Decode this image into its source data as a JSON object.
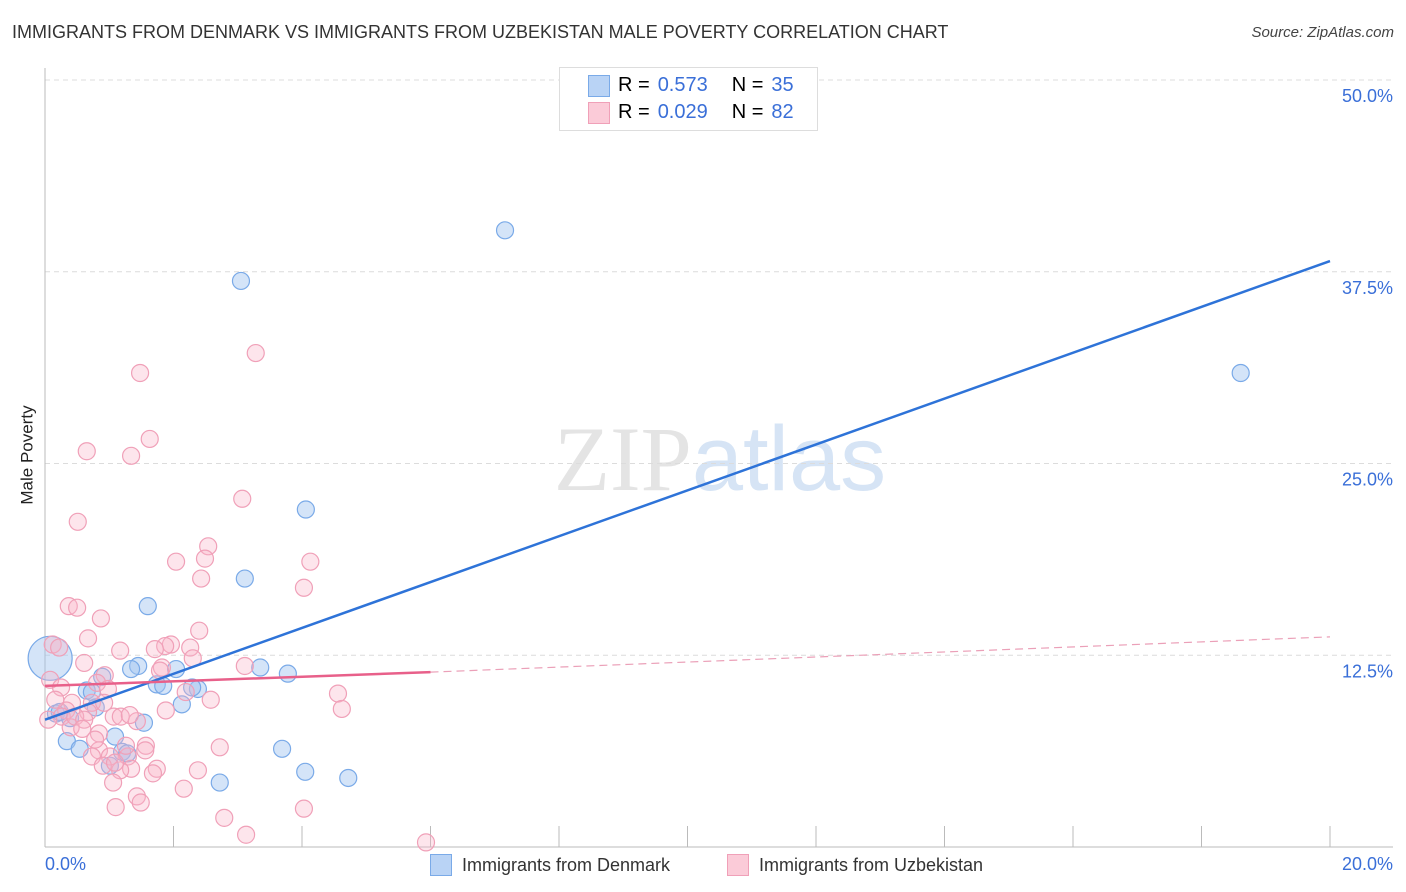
{
  "title": "IMMIGRANTS FROM DENMARK VS IMMIGRANTS FROM UZBEKISTAN MALE POVERTY CORRELATION CHART",
  "source": "Source: ZipAtlas.com",
  "watermark": "ZIPatlas",
  "legend": {
    "r_label": "R =",
    "n_label": "N =",
    "rows": [
      {
        "r": "0.573",
        "n": "35"
      },
      {
        "r": "0.029",
        "n": "82"
      }
    ]
  },
  "chart_data": {
    "type": "scatter",
    "xlabel": "",
    "ylabel": "Male Poverty",
    "xlim": [
      0,
      20
    ],
    "ylim": [
      0,
      50
    ],
    "x_tick_labels": [
      "0.0%",
      "20.0%"
    ],
    "y_tick_labels": [
      "12.5%",
      "25.0%",
      "37.5%",
      "50.0%"
    ],
    "y_ticks": [
      12.5,
      25,
      37.5,
      50
    ],
    "grid": true,
    "legend_position": "top-center",
    "series": [
      {
        "name": "Immigrants from Denmark",
        "color": "#7aaae8",
        "line_color": "#2e73d8",
        "trend": {
          "x": [
            0,
            20
          ],
          "y": [
            8.3,
            38.2
          ]
        },
        "points": [
          [
            7.16,
            40.2
          ],
          [
            3.05,
            36.9
          ],
          [
            18.61,
            30.9
          ],
          [
            4.06,
            22.0
          ],
          [
            3.11,
            17.5
          ],
          [
            1.6,
            15.7
          ],
          [
            1.45,
            11.8
          ],
          [
            1.34,
            11.6
          ],
          [
            2.04,
            11.6
          ],
          [
            3.35,
            11.7
          ],
          [
            3.78,
            11.3
          ],
          [
            1.74,
            10.6
          ],
          [
            1.84,
            10.5
          ],
          [
            2.38,
            10.3
          ],
          [
            2.29,
            10.4
          ],
          [
            0.65,
            10.2
          ],
          [
            0.73,
            10.1
          ],
          [
            0.89,
            11.1
          ],
          [
            2.13,
            9.3
          ],
          [
            0.79,
            9.1
          ],
          [
            0.17,
            8.7
          ],
          [
            0.39,
            8.4
          ],
          [
            1.54,
            8.1
          ],
          [
            1.09,
            7.2
          ],
          [
            0.34,
            6.9
          ],
          [
            0.54,
            6.4
          ],
          [
            1.2,
            6.2
          ],
          [
            1.28,
            6.1
          ],
          [
            3.69,
            6.4
          ],
          [
            4.05,
            4.9
          ],
          [
            4.72,
            4.5
          ],
          [
            2.72,
            4.2
          ],
          [
            1.01,
            5.3
          ],
          [
            0.08,
            12.3
          ],
          [
            0.23,
            8.8
          ]
        ]
      },
      {
        "name": "Immigrants from Uzbekistan",
        "color": "#f0a0b8",
        "line_color": "#e8608a",
        "trend": {
          "x": [
            0,
            6
          ],
          "y": [
            10.5,
            11.4
          ],
          "dashed_to": [
            20,
            13.7
          ]
        },
        "points": [
          [
            3.28,
            32.2
          ],
          [
            1.48,
            30.9
          ],
          [
            1.63,
            26.6
          ],
          [
            0.65,
            25.8
          ],
          [
            1.34,
            25.5
          ],
          [
            3.07,
            22.7
          ],
          [
            0.51,
            21.2
          ],
          [
            2.54,
            19.6
          ],
          [
            2.04,
            18.6
          ],
          [
            2.49,
            18.8
          ],
          [
            4.13,
            18.6
          ],
          [
            2.43,
            17.5
          ],
          [
            4.03,
            16.9
          ],
          [
            0.37,
            15.7
          ],
          [
            0.5,
            15.6
          ],
          [
            0.87,
            14.9
          ],
          [
            2.4,
            14.1
          ],
          [
            0.67,
            13.6
          ],
          [
            0.12,
            13.2
          ],
          [
            1.96,
            13.2
          ],
          [
            1.87,
            13.1
          ],
          [
            1.71,
            12.9
          ],
          [
            1.17,
            12.8
          ],
          [
            2.26,
            13.0
          ],
          [
            2.3,
            12.3
          ],
          [
            0.61,
            12.0
          ],
          [
            1.82,
            11.7
          ],
          [
            1.79,
            11.5
          ],
          [
            3.11,
            11.8
          ],
          [
            0.08,
            10.9
          ],
          [
            0.93,
            11.2
          ],
          [
            0.25,
            10.4
          ],
          [
            0.81,
            10.7
          ],
          [
            0.98,
            10.3
          ],
          [
            2.19,
            10.1
          ],
          [
            2.58,
            9.6
          ],
          [
            4.56,
            10.0
          ],
          [
            4.62,
            9.0
          ],
          [
            0.42,
            9.4
          ],
          [
            0.73,
            9.4
          ],
          [
            0.92,
            9.4
          ],
          [
            0.33,
            8.9
          ],
          [
            0.67,
            8.8
          ],
          [
            0.26,
            8.5
          ],
          [
            1.07,
            8.5
          ],
          [
            1.18,
            8.5
          ],
          [
            1.43,
            8.2
          ],
          [
            0.4,
            7.8
          ],
          [
            0.84,
            7.4
          ],
          [
            1.57,
            6.6
          ],
          [
            0.84,
            6.3
          ],
          [
            1.01,
            5.9
          ],
          [
            1.29,
            5.9
          ],
          [
            0.73,
            5.9
          ],
          [
            2.72,
            6.5
          ],
          [
            1.74,
            5.1
          ],
          [
            1.34,
            5.1
          ],
          [
            1.17,
            5.0
          ],
          [
            1.68,
            4.8
          ],
          [
            2.38,
            5.0
          ],
          [
            1.06,
            4.2
          ],
          [
            2.16,
            3.8
          ],
          [
            1.43,
            3.3
          ],
          [
            1.49,
            2.9
          ],
          [
            1.1,
            2.6
          ],
          [
            4.03,
            2.5
          ],
          [
            2.79,
            1.9
          ],
          [
            3.13,
            0.8
          ],
          [
            5.93,
            0.3
          ],
          [
            0.16,
            9.6
          ],
          [
            0.47,
            8.5
          ],
          [
            0.61,
            8.3
          ],
          [
            1.26,
            6.6
          ],
          [
            0.9,
            5.3
          ],
          [
            1.88,
            8.9
          ],
          [
            1.56,
            6.3
          ],
          [
            0.22,
            13.0
          ],
          [
            0.05,
            8.3
          ],
          [
            1.32,
            8.6
          ],
          [
            0.58,
            7.7
          ],
          [
            1.09,
            5.5
          ],
          [
            0.78,
            7.0
          ]
        ]
      }
    ]
  }
}
